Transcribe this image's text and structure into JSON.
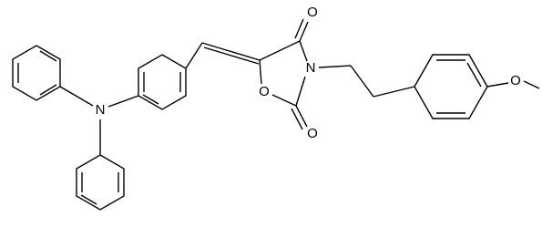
{
  "atoms": [
    {
      "label": "N"
    },
    {
      "label": "O"
    },
    {
      "label": "N"
    },
    {
      "label": "O"
    },
    {
      "label": "O"
    },
    {
      "label": "O"
    }
  ]
}
